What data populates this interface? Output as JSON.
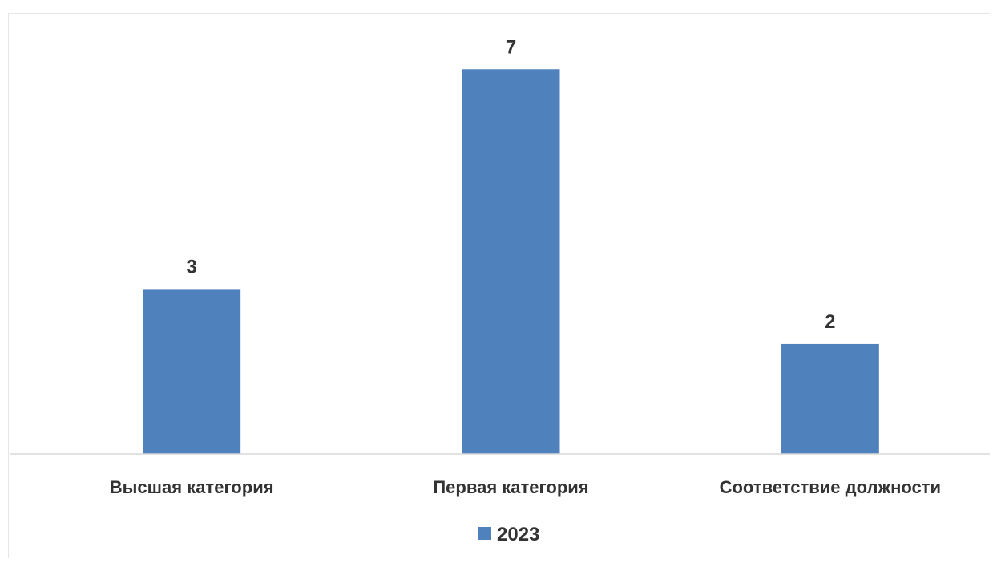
{
  "chart_data": {
    "type": "bar",
    "categories": [
      "Высшая категория",
      "Первая категория",
      "Соответствие должности"
    ],
    "series": [
      {
        "name": "2023",
        "values": [
          3,
          7,
          2
        ],
        "color": "#4f81bd"
      }
    ],
    "ylim": [
      0,
      7.5
    ],
    "grid": false,
    "legend_position": "bottom",
    "data_labels": true
  }
}
